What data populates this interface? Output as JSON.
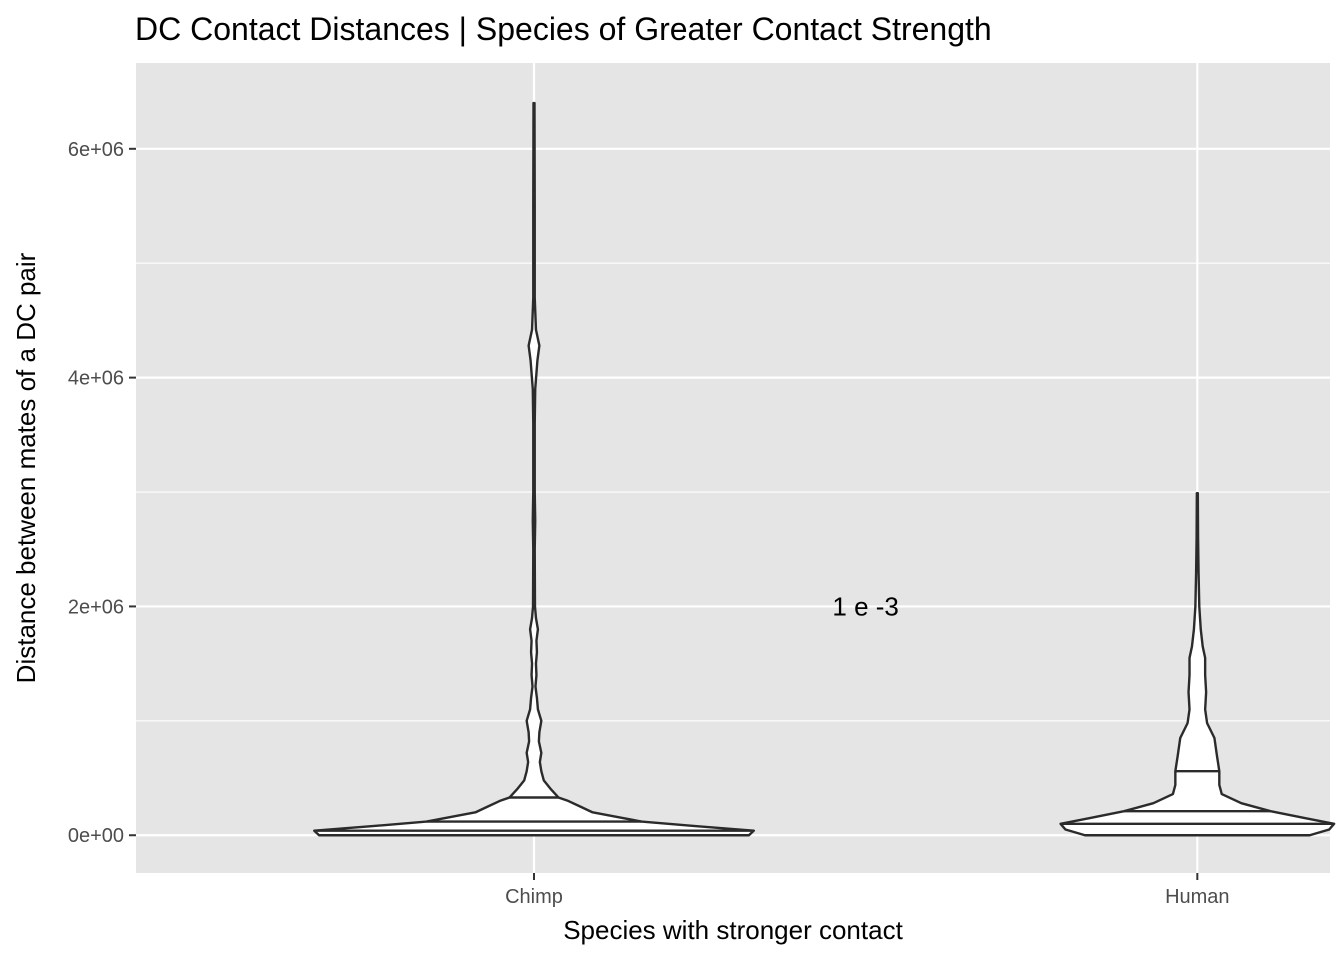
{
  "chart_data": {
    "type": "violin",
    "title": "DC Contact Distances | Species of Greater Contact Strength",
    "xlabel": "Species with stronger contact",
    "ylabel": "Distance between mates of a DC pair",
    "categories": [
      "Chimp",
      "Human"
    ],
    "ylim": [
      -330000,
      6750000
    ],
    "y_ticks": [
      0,
      2000000,
      4000000,
      6000000
    ],
    "y_tick_labels": [
      "0e+00",
      "2e+06",
      "4e+06",
      "6e+06"
    ],
    "y_minor_ticks": [
      1000000,
      3000000,
      5000000
    ],
    "annotation": {
      "text": "1 e -3",
      "x_position": 1.5,
      "y": 2000000
    },
    "grid": true,
    "panel_background": "#e5e5e5",
    "violins": [
      {
        "category": "Chimp",
        "quantiles": [
          40000,
          120000,
          330000
        ],
        "profile": [
          [
            0,
            0.44
          ],
          [
            40000,
            0.45
          ],
          [
            80000,
            0.33
          ],
          [
            120000,
            0.22
          ],
          [
            160000,
            0.17
          ],
          [
            200000,
            0.12
          ],
          [
            250000,
            0.095
          ],
          [
            300000,
            0.07
          ],
          [
            330000,
            0.05
          ],
          [
            400000,
            0.035
          ],
          [
            480000,
            0.02
          ],
          [
            560000,
            0.015
          ],
          [
            640000,
            0.012
          ],
          [
            720000,
            0.015
          ],
          [
            820000,
            0.01
          ],
          [
            900000,
            0.011
          ],
          [
            1000000,
            0.015
          ],
          [
            1100000,
            0.008
          ],
          [
            1200000,
            0.006
          ],
          [
            1300000,
            0.003
          ],
          [
            1400000,
            0.005
          ],
          [
            1500000,
            0.004
          ],
          [
            1600000,
            0.006
          ],
          [
            1700000,
            0.005
          ],
          [
            1800000,
            0.008
          ],
          [
            1900000,
            0.004
          ],
          [
            2000000,
            0.002
          ],
          [
            2500000,
            0.0015
          ],
          [
            2750000,
            0.0025
          ],
          [
            3000000,
            0.0015
          ],
          [
            3600000,
            0.0015
          ],
          [
            3900000,
            0.0025
          ],
          [
            4150000,
            0.007
          ],
          [
            4280000,
            0.011
          ],
          [
            4420000,
            0.004
          ],
          [
            4700000,
            0.0015
          ],
          [
            5500000,
            0.0015
          ],
          [
            6400000,
            0.001
          ]
        ]
      },
      {
        "category": "Human",
        "quantiles": [
          100000,
          210000,
          560000
        ],
        "profile": [
          [
            0,
            0.23
          ],
          [
            50000,
            0.27
          ],
          [
            100000,
            0.28
          ],
          [
            150000,
            0.22
          ],
          [
            210000,
            0.15
          ],
          [
            280000,
            0.09
          ],
          [
            360000,
            0.05
          ],
          [
            440000,
            0.045
          ],
          [
            560000,
            0.045
          ],
          [
            700000,
            0.04
          ],
          [
            850000,
            0.035
          ],
          [
            980000,
            0.02
          ],
          [
            1100000,
            0.016
          ],
          [
            1250000,
            0.018
          ],
          [
            1400000,
            0.016
          ],
          [
            1550000,
            0.016
          ],
          [
            1650000,
            0.011
          ],
          [
            1800000,
            0.007
          ],
          [
            2000000,
            0.004
          ],
          [
            2300000,
            0.0025
          ],
          [
            2600000,
            0.0015
          ],
          [
            2990000,
            0.001
          ]
        ]
      }
    ]
  }
}
